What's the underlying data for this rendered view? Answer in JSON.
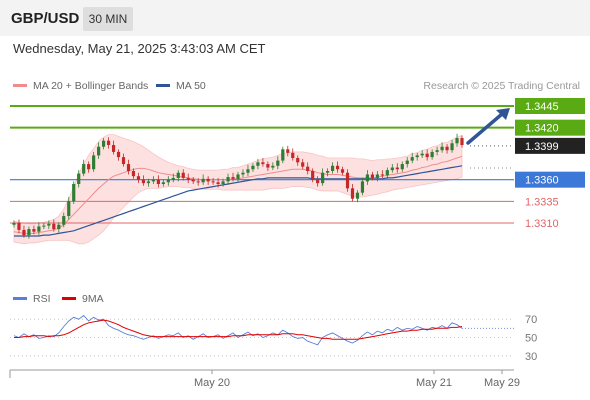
{
  "header": {
    "pair": "GBP/USD",
    "timeframe": "30 MIN"
  },
  "timestamp": "Wednesday, May 21, 2025 3:43:03 AM CET",
  "legend": {
    "items": [
      {
        "label": "MA 20 + Bollinger Bands",
        "color": "#f08c8c"
      },
      {
        "label": "MA 50",
        "color": "#2f5597"
      }
    ],
    "rsi_items": [
      {
        "label": "RSI",
        "color": "#5b7fd6"
      },
      {
        "label": "9MA",
        "color": "#e00000"
      }
    ]
  },
  "credit": "Research © 2025 Trading Central",
  "colors": {
    "resistance": "#5aaa14",
    "pivot": "#3c78d8",
    "support": "#e06666",
    "last": "#222222",
    "arrow": "#2f5597",
    "candle_up": "#2e7d32",
    "candle_down": "#c62828",
    "band_fill": "#fde1e1"
  },
  "chart_data": [
    {
      "type": "candlestick",
      "title": "GBP/USD",
      "timeframe": "30 MIN",
      "x_tick_labels": [
        "May 20",
        "May 21",
        "May 29"
      ],
      "levels": [
        {
          "value": 1.3445,
          "label": "1.3445",
          "kind": "resistance"
        },
        {
          "value": 1.342,
          "label": "1.3420",
          "kind": "resistance"
        },
        {
          "value": 1.3399,
          "label": "1.3399",
          "kind": "last"
        },
        {
          "value": 1.336,
          "label": "1.3360",
          "kind": "pivot"
        },
        {
          "value": 1.3335,
          "label": "1.3335",
          "kind": "support"
        },
        {
          "value": 1.331,
          "label": "1.3310",
          "kind": "support"
        }
      ],
      "close": [
        1.331,
        1.3302,
        1.3296,
        1.3303,
        1.33,
        1.3306,
        1.3307,
        1.3309,
        1.3303,
        1.3308,
        1.3318,
        1.3335,
        1.3355,
        1.3367,
        1.3378,
        1.3372,
        1.3388,
        1.3398,
        1.3405,
        1.34,
        1.3392,
        1.3386,
        1.3378,
        1.337,
        1.3364,
        1.336,
        1.3356,
        1.3358,
        1.336,
        1.3355,
        1.3357,
        1.336,
        1.3362,
        1.3368,
        1.3362,
        1.336,
        1.3358,
        1.3357,
        1.3361,
        1.3358,
        1.3357,
        1.3355,
        1.3358,
        1.3363,
        1.3361,
        1.3366,
        1.3368,
        1.3372,
        1.3376,
        1.338,
        1.3378,
        1.3374,
        1.3376,
        1.3382,
        1.3395,
        1.3391,
        1.3385,
        1.338,
        1.3375,
        1.337,
        1.336,
        1.3356,
        1.3368,
        1.337,
        1.3376,
        1.3372,
        1.3368,
        1.335,
        1.3338,
        1.3345,
        1.3358,
        1.3366,
        1.3362,
        1.3366,
        1.3365,
        1.3371,
        1.3374,
        1.3372,
        1.3378,
        1.3382,
        1.3386,
        1.3388,
        1.339,
        1.3386,
        1.3392,
        1.3394,
        1.3398,
        1.3394,
        1.3402,
        1.3408,
        1.34
      ],
      "ma20": [
        1.33,
        1.3299,
        1.3298,
        1.3298,
        1.3298,
        1.3299,
        1.33,
        1.3301,
        1.3302,
        1.3304,
        1.3308,
        1.3314,
        1.332,
        1.3326,
        1.3332,
        1.3338,
        1.3344,
        1.335,
        1.3355,
        1.336,
        1.3364,
        1.3366,
        1.3368,
        1.337,
        1.3372,
        1.3373,
        1.3373,
        1.3372,
        1.337,
        1.3368,
        1.3367,
        1.3366,
        1.3365,
        1.3364,
        1.3363,
        1.3362,
        1.3361,
        1.336,
        1.336,
        1.336,
        1.336,
        1.336,
        1.336,
        1.336,
        1.3361,
        1.3361,
        1.3362,
        1.3363,
        1.3364,
        1.3365,
        1.3366,
        1.3367,
        1.3368,
        1.3369,
        1.337,
        1.3371,
        1.3372,
        1.3372,
        1.3372,
        1.3371,
        1.337,
        1.3368,
        1.3367,
        1.3366,
        1.3366,
        1.3366,
        1.3365,
        1.3364,
        1.3363,
        1.3362,
        1.3362,
        1.3362,
        1.3362,
        1.3363,
        1.3364,
        1.3365,
        1.3366,
        1.3367,
        1.3368,
        1.3369,
        1.3371,
        1.3372,
        1.3374,
        1.3375,
        1.3377,
        1.3378,
        1.338,
        1.3381,
        1.3383,
        1.3385,
        1.3387
      ],
      "ma50": [
        1.3295,
        1.3295,
        1.3295,
        1.3295,
        1.3295,
        1.3295,
        1.3296,
        1.3296,
        1.3297,
        1.3298,
        1.3299,
        1.33,
        1.3301,
        1.3303,
        1.3305,
        1.3307,
        1.3309,
        1.3311,
        1.3313,
        1.3315,
        1.3317,
        1.3319,
        1.3321,
        1.3323,
        1.3325,
        1.3327,
        1.3329,
        1.3331,
        1.3333,
        1.3335,
        1.3337,
        1.3339,
        1.3341,
        1.3343,
        1.3345,
        1.3347,
        1.3348,
        1.3349,
        1.335,
        1.3351,
        1.3352,
        1.3353,
        1.3354,
        1.3355,
        1.3356,
        1.3357,
        1.3358,
        1.3359,
        1.336,
        1.3361,
        1.3361,
        1.3362,
        1.3362,
        1.3362,
        1.3362,
        1.3362,
        1.3362,
        1.3362,
        1.3362,
        1.3362,
        1.3361,
        1.3361,
        1.3361,
        1.3361,
        1.3361,
        1.3361,
        1.3361,
        1.3361,
        1.3361,
        1.3361,
        1.3361,
        1.3361,
        1.3361,
        1.3361,
        1.3361,
        1.3362,
        1.3362,
        1.3363,
        1.3364,
        1.3365,
        1.3366,
        1.3367,
        1.3368,
        1.3369,
        1.337,
        1.3371,
        1.3372,
        1.3373,
        1.3374,
        1.3375,
        1.3376
      ],
      "band_width": [
        0.0012,
        0.0012,
        0.0012,
        0.0011,
        0.0011,
        0.0011,
        0.0011,
        0.0011,
        0.0012,
        0.0014,
        0.0018,
        0.0024,
        0.0032,
        0.004,
        0.0046,
        0.005,
        0.0052,
        0.0054,
        0.0054,
        0.0052,
        0.0048,
        0.0044,
        0.004,
        0.0036,
        0.0032,
        0.0028,
        0.0025,
        0.0022,
        0.002,
        0.0018,
        0.0016,
        0.0014,
        0.0013,
        0.0012,
        0.0012,
        0.0011,
        0.0011,
        0.0011,
        0.0011,
        0.0011,
        0.0011,
        0.0011,
        0.0012,
        0.0012,
        0.0013,
        0.0013,
        0.0014,
        0.0015,
        0.0016,
        0.0017,
        0.0018,
        0.0018,
        0.0018,
        0.0019,
        0.002,
        0.002,
        0.002,
        0.002,
        0.002,
        0.002,
        0.002,
        0.002,
        0.002,
        0.0019,
        0.0019,
        0.0019,
        0.002,
        0.0021,
        0.0022,
        0.0022,
        0.0022,
        0.0021,
        0.002,
        0.002,
        0.0019,
        0.0019,
        0.0018,
        0.0018,
        0.0018,
        0.0018,
        0.0019,
        0.0019,
        0.002,
        0.002,
        0.0021,
        0.0021,
        0.0022,
        0.0022,
        0.0023,
        0.0024,
        0.0024
      ],
      "projection_target": 1.3445
    },
    {
      "type": "line",
      "title": "RSI",
      "ylim": [
        20,
        80
      ],
      "y_tick_labels": [
        "70",
        "50",
        "30"
      ],
      "series": [
        {
          "name": "RSI",
          "values": [
            52,
            50,
            54,
            51,
            53,
            49,
            50,
            52,
            51,
            55,
            62,
            68,
            72,
            70,
            74,
            68,
            72,
            69,
            70,
            63,
            60,
            58,
            55,
            53,
            52,
            50,
            48,
            50,
            52,
            49,
            51,
            53,
            52,
            55,
            50,
            52,
            48,
            51,
            54,
            50,
            51,
            53,
            49,
            52,
            55,
            50,
            53,
            56,
            52,
            54,
            50,
            52,
            55,
            53,
            58,
            55,
            51,
            49,
            50,
            46,
            44,
            42,
            50,
            53,
            55,
            52,
            49,
            46,
            44,
            47,
            52,
            56,
            53,
            57,
            55,
            59,
            57,
            61,
            58,
            60,
            59,
            62,
            60,
            58,
            61,
            60,
            63,
            60,
            66,
            64,
            60
          ]
        },
        {
          "name": "9MA",
          "values": [
            50,
            50,
            51,
            51,
            52,
            52,
            52,
            51,
            52,
            52,
            53,
            55,
            58,
            61,
            64,
            66,
            67,
            68,
            69,
            68,
            66,
            64,
            61,
            59,
            57,
            55,
            53,
            52,
            51,
            51,
            51,
            51,
            51,
            51,
            51,
            51,
            51,
            51,
            51,
            51,
            51,
            51,
            51,
            51,
            52,
            52,
            52,
            53,
            53,
            53,
            53,
            53,
            53,
            53,
            54,
            54,
            54,
            53,
            53,
            52,
            51,
            50,
            49,
            49,
            48,
            48,
            48,
            48,
            48,
            48,
            49,
            50,
            51,
            52,
            53,
            54,
            55,
            56,
            57,
            57,
            58,
            58,
            59,
            59,
            59,
            60,
            60,
            60,
            61,
            61,
            62
          ]
        }
      ]
    }
  ]
}
